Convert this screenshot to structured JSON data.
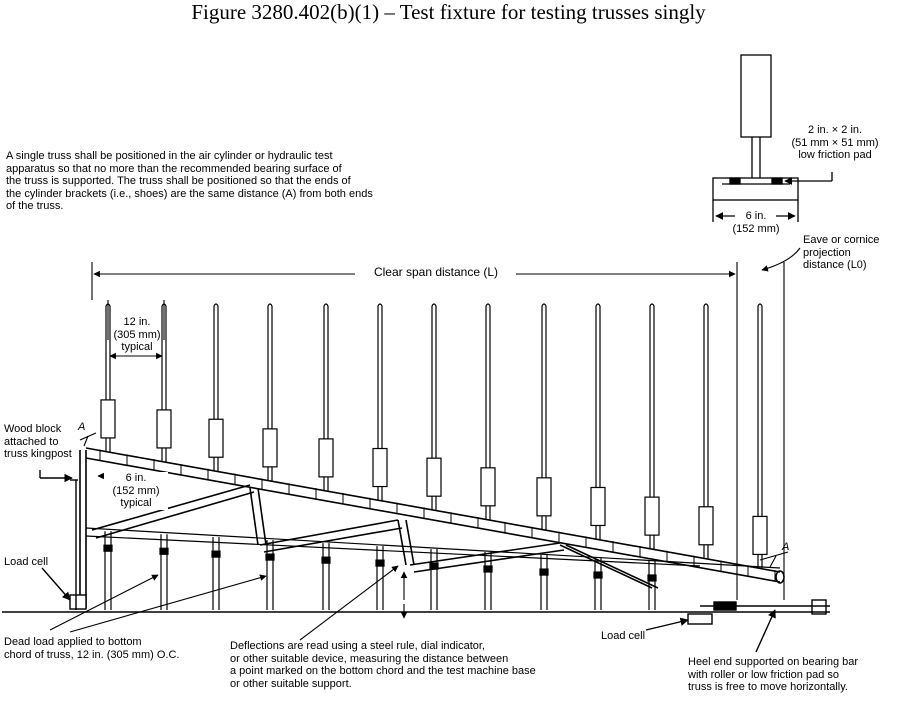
{
  "figure_title": "Figure 3280.402(b)(1) – Test fixture for testing trusses singly",
  "notes": {
    "positioning": "A single truss shall be positioned in the air cylinder or hydraulic test\napparatus so that no more than the recommended bearing surface of\nthe truss is supported. The truss shall be positioned so that the ends of\nthe cylinder brackets (i.e., shoes) are the same distance (A) from both ends\nof the truss.",
    "pad": "2 in. × 2 in.\n(51 mm × 51 mm)\nlow friction pad",
    "pad_width": "6 in.\n(152 mm)",
    "eave": "Eave or cornice\nprojection\ndistance (L0)",
    "clear_span": "Clear span distance (L)",
    "cyl_spacing": "12 in.\n(305 mm)\ntypical",
    "wood_block": "Wood block\nattached to\ntruss kingpost",
    "bracket_spacing": "6 in.\n(152 mm)\ntypical",
    "load_cell_left": "Load cell",
    "load_cell_right": "Load cell",
    "dead_load": "Dead load applied to bottom\nchord of truss, 12 in. (305 mm) O.C.",
    "deflections": "Deflections are read using a steel rule, dial indicator,\nor other suitable device, measuring the distance between\na point marked on the bottom chord and the test machine base\nor other suitable support.",
    "heel_end": "Heel end supported on bearing bar\nwith roller or low friction pad so\ntruss is free to move horizontally.",
    "marker_a_left": "A",
    "marker_a_right": "A"
  }
}
